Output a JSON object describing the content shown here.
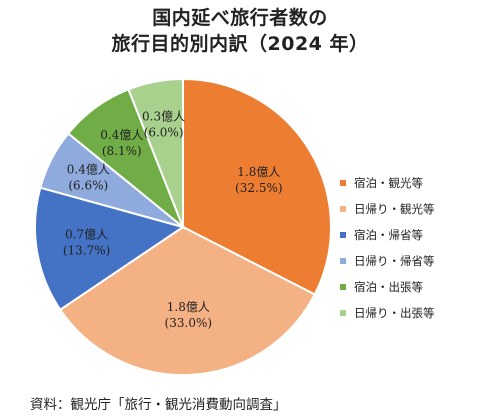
{
  "chart_data": {
    "type": "pie",
    "title_line1": "国内延べ旅行者数の",
    "title_line2": "旅行目的別内訳（2024 年）",
    "slices": [
      {
        "name": "宿泊・観光等",
        "value": 32.5,
        "label_top": "1.8億人",
        "label_bottom": "(32.5%)",
        "color": "#ED7D31"
      },
      {
        "name": "日帰り・観光等",
        "value": 33.0,
        "label_top": "1.8億人",
        "label_bottom": "(33.0%)",
        "color": "#F4B183"
      },
      {
        "name": "宿泊・帰省等",
        "value": 13.7,
        "label_top": "0.7億人",
        "label_bottom": "(13.7%)",
        "color": "#4472C4"
      },
      {
        "name": "日帰り・帰省等",
        "value": 6.6,
        "label_top": "0.4億人",
        "label_bottom": "(6.6%)",
        "color": "#8FAADC"
      },
      {
        "name": "宿泊・出張等",
        "value": 8.1,
        "label_top": "0.4億人",
        "label_bottom": "(8.1%)",
        "color": "#70AD47"
      },
      {
        "name": "日帰り・出張等",
        "value": 6.0,
        "label_top": "0.3億人",
        "label_bottom": "(6.0%)",
        "color": "#A9D18E"
      }
    ],
    "legend_position": "right",
    "source": "資料：観光庁「旅行・観光消費動向調査」"
  }
}
